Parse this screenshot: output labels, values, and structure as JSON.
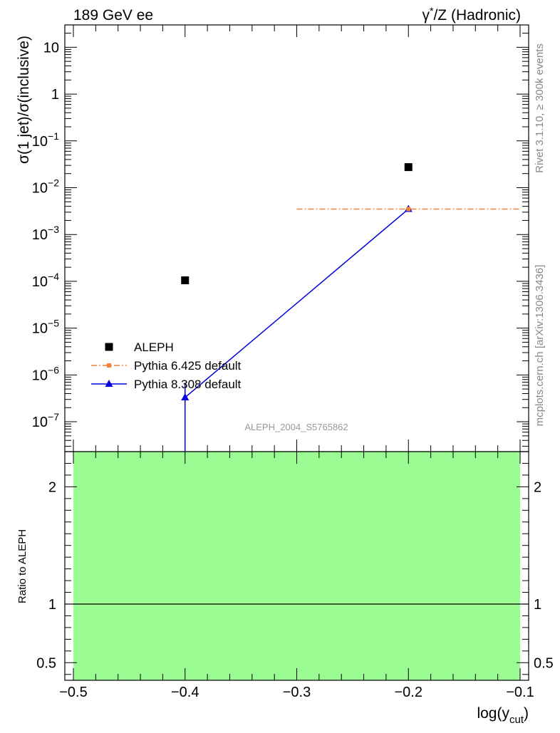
{
  "header": {
    "left": "189 GeV ee",
    "right_gamma": "γ",
    "right_star": "*",
    "right_rest": "/Z (Hadronic)"
  },
  "side_labels": {
    "rivet": "Rivet 3.1.10, ≥ 300k events",
    "mcplots": "mcplots.cern.ch [arXiv:1306.3436]"
  },
  "analysis_label": "ALEPH_2004_S5765862",
  "chart_data": [
    {
      "type": "scatter",
      "name": "main",
      "ylabel": "σ(1 jet)/σ(inclusive)",
      "yscale": "log",
      "xlim": [
        -0.5,
        -0.1
      ],
      "ylim": [
        2.3e-08,
        30
      ],
      "y_major_ticks": [
        {
          "v": 1e-07,
          "m": "10",
          "e": "−7"
        },
        {
          "v": 1e-06,
          "m": "10",
          "e": "−6"
        },
        {
          "v": 1e-05,
          "m": "10",
          "e": "−5"
        },
        {
          "v": 0.0001,
          "m": "10",
          "e": "−4"
        },
        {
          "v": 0.001,
          "m": "10",
          "e": "−3"
        },
        {
          "v": 0.01,
          "m": "10",
          "e": "−2"
        },
        {
          "v": 0.1,
          "m": "10",
          "e": "−1"
        },
        {
          "v": 1,
          "m": "1",
          "e": ""
        },
        {
          "v": 10,
          "m": "10",
          "e": ""
        }
      ],
      "legend_position": "left-middle",
      "series": [
        {
          "name": "ALEPH",
          "style": "black-squares",
          "color": "#000000",
          "points": [
            {
              "x": -0.4,
              "y": 0.000105
            },
            {
              "x": -0.2,
              "y": 0.0275
            }
          ]
        },
        {
          "name": "Pythia 6.425 default",
          "style": "orange-dashdot",
          "color": "#f0843c",
          "points": [
            {
              "x": -0.2,
              "y": 0.0035,
              "xlo": -0.3,
              "xhi": -0.1
            }
          ]
        },
        {
          "name": "Pythia 8.308 default",
          "style": "blue-triangles-line",
          "color": "#0000e0",
          "points": [
            {
              "x": -0.4,
              "y": 3.3e-07,
              "ylo": 2e-08,
              "yhi": 6.8e-07
            },
            {
              "x": -0.2,
              "y": 0.0035
            }
          ]
        }
      ]
    },
    {
      "type": "scatter",
      "name": "ratio",
      "ylabel": "Ratio to ALEPH",
      "xlabel_main": "log(y",
      "xlabel_sub": "cut",
      "xlabel_close": ")",
      "xlim": [
        -0.5,
        -0.1
      ],
      "ylim": [
        0.35,
        2.3
      ],
      "x_ticks": [
        {
          "v": -0.5,
          "label": "−0.5"
        },
        {
          "v": -0.4,
          "label": "−0.4"
        },
        {
          "v": -0.3,
          "label": "−0.3"
        },
        {
          "v": -0.2,
          "label": "−0.2"
        },
        {
          "v": -0.1,
          "label": "−0.1"
        }
      ],
      "y_ticks": [
        {
          "v": 0.5,
          "label": "0.5"
        },
        {
          "v": 1,
          "label": "1"
        },
        {
          "v": 2,
          "label": "2"
        }
      ],
      "band": {
        "xlo": -0.5,
        "xhi": -0.1,
        "color": "#9cfc94"
      },
      "reference_line": 1,
      "series": [
        {
          "name": "Pythia 8.308 default",
          "color": "#0000e0",
          "points": [
            {
              "x": -0.4,
              "y_above": true
            }
          ]
        }
      ]
    }
  ]
}
